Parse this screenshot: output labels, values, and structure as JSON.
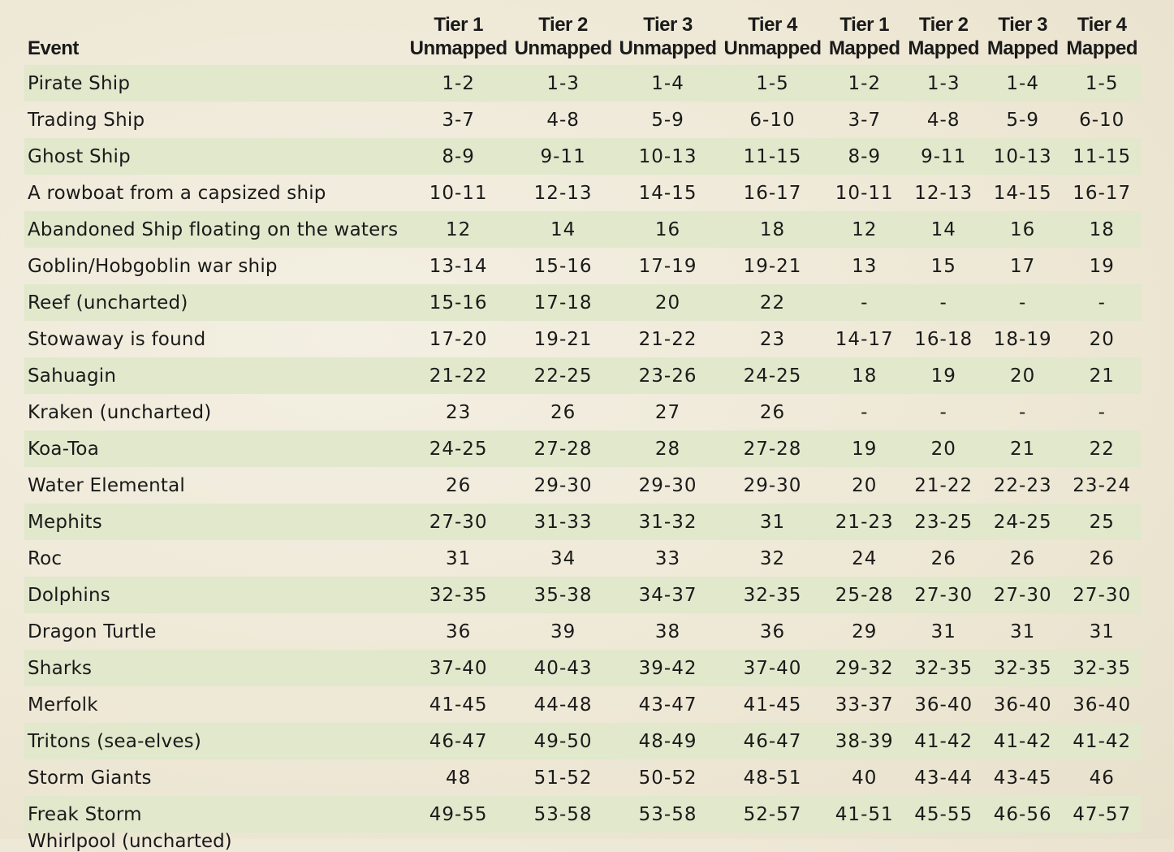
{
  "table": {
    "headers": {
      "event": "Event",
      "tiers": [
        {
          "tier": "Tier 1",
          "kind": "Unmapped"
        },
        {
          "tier": "Tier 2",
          "kind": "Unmapped"
        },
        {
          "tier": "Tier 3",
          "kind": "Unmapped"
        },
        {
          "tier": "Tier 4",
          "kind": "Unmapped"
        },
        {
          "tier": "Tier 1",
          "kind": "Mapped"
        },
        {
          "tier": "Tier 2",
          "kind": "Mapped"
        },
        {
          "tier": "Tier 3",
          "kind": "Mapped"
        },
        {
          "tier": "Tier 4",
          "kind": "Mapped"
        }
      ]
    },
    "rows": [
      {
        "event": "Pirate Ship",
        "values": [
          "1-2",
          "1-3",
          "1-4",
          "1-5",
          "1-2",
          "1-3",
          "1-4",
          "1-5"
        ]
      },
      {
        "event": "Trading Ship",
        "values": [
          "3-7",
          "4-8",
          "5-9",
          "6-10",
          "3-7",
          "4-8",
          "5-9",
          "6-10"
        ]
      },
      {
        "event": "Ghost Ship",
        "values": [
          "8-9",
          "9-11",
          "10-13",
          "11-15",
          "8-9",
          "9-11",
          "10-13",
          "11-15"
        ]
      },
      {
        "event": "A rowboat from a capsized ship",
        "values": [
          "10-11",
          "12-13",
          "14-15",
          "16-17",
          "10-11",
          "12-13",
          "14-15",
          "16-17"
        ]
      },
      {
        "event": "Abandoned Ship floating on the waters",
        "values": [
          "12",
          "14",
          "16",
          "18",
          "12",
          "14",
          "16",
          "18"
        ]
      },
      {
        "event": "Goblin/Hobgoblin war ship",
        "values": [
          "13-14",
          "15-16",
          "17-19",
          "19-21",
          "13",
          "15",
          "17",
          "19"
        ]
      },
      {
        "event": "Reef (uncharted)",
        "values": [
          "15-16",
          "17-18",
          "20",
          "22",
          "-",
          "-",
          "-",
          "-"
        ]
      },
      {
        "event": "Stowaway is found",
        "values": [
          "17-20",
          "19-21",
          "21-22",
          "23",
          "14-17",
          "16-18",
          "18-19",
          "20"
        ]
      },
      {
        "event": "Sahuagin",
        "values": [
          "21-22",
          "22-25",
          "23-26",
          "24-25",
          "18",
          "19",
          "20",
          "21"
        ]
      },
      {
        "event": "Kraken (uncharted)",
        "values": [
          "23",
          "26",
          "27",
          "26",
          "-",
          "-",
          "-",
          "-"
        ]
      },
      {
        "event": "Koa-Toa",
        "values": [
          "24-25",
          "27-28",
          "28",
          "27-28",
          "19",
          "20",
          "21",
          "22"
        ]
      },
      {
        "event": "Water Elemental",
        "values": [
          "26",
          "29-30",
          "29-30",
          "29-30",
          "20",
          "21-22",
          "22-23",
          "23-24"
        ]
      },
      {
        "event": "Mephits",
        "values": [
          "27-30",
          "31-33",
          "31-32",
          "31",
          "21-23",
          "23-25",
          "24-25",
          "25"
        ]
      },
      {
        "event": "Roc",
        "values": [
          "31",
          "34",
          "33",
          "32",
          "24",
          "26",
          "26",
          "26"
        ]
      },
      {
        "event": "Dolphins",
        "values": [
          "32-35",
          "35-38",
          "34-37",
          "32-35",
          "25-28",
          "27-30",
          "27-30",
          "27-30"
        ]
      },
      {
        "event": "Dragon Turtle",
        "values": [
          "36",
          "39",
          "38",
          "36",
          "29",
          "31",
          "31",
          "31"
        ]
      },
      {
        "event": "Sharks",
        "values": [
          "37-40",
          "40-43",
          "39-42",
          "37-40",
          "29-32",
          "32-35",
          "32-35",
          "32-35"
        ]
      },
      {
        "event": "Merfolk",
        "values": [
          "41-45",
          "44-48",
          "43-47",
          "41-45",
          "33-37",
          "36-40",
          "36-40",
          "36-40"
        ]
      },
      {
        "event": "Tritons (sea-elves)",
        "values": [
          "46-47",
          "49-50",
          "48-49",
          "46-47",
          "38-39",
          "41-42",
          "41-42",
          "41-42"
        ]
      },
      {
        "event": "Storm Giants",
        "values": [
          "48",
          "51-52",
          "50-52",
          "48-51",
          "40",
          "43-44",
          "43-45",
          "46"
        ]
      },
      {
        "event": "Freak Storm",
        "values": [
          "49-55",
          "53-58",
          "53-58",
          "52-57",
          "41-51",
          "45-55",
          "46-56",
          "47-57"
        ]
      }
    ],
    "cut_off_row": "Whirlpool (uncharted)"
  },
  "colors": {
    "row_shade": "#e1e8cc",
    "parchment": "#eee8d6",
    "text": "#1a1a1a"
  }
}
